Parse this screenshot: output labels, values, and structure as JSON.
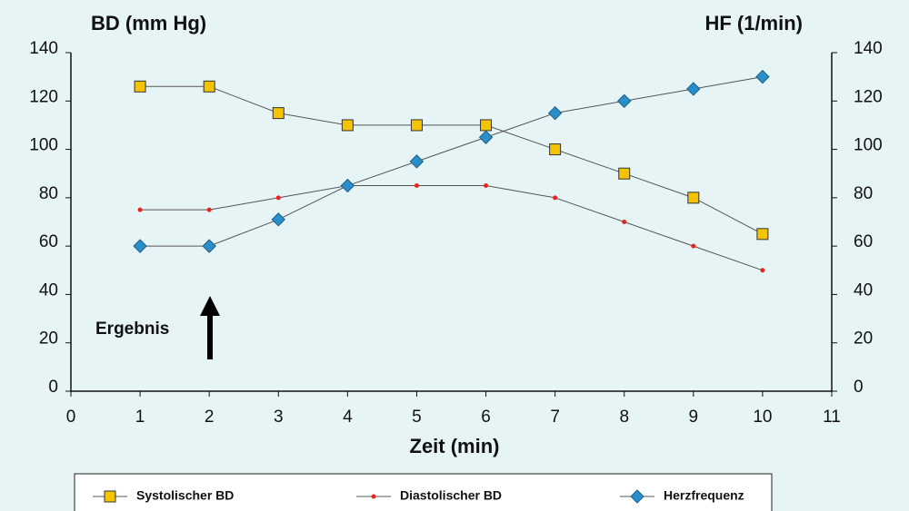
{
  "chart_data": {
    "type": "line",
    "y_title": "BD (mm Hg)",
    "y2_title": "HF (1/min)",
    "x_title": "Zeit (min)",
    "annotation": "Ergebnis",
    "x": [
      1,
      2,
      3,
      4,
      5,
      6,
      7,
      8,
      9,
      10
    ],
    "series": [
      {
        "name": "Systolischer BD",
        "color": "#f5c400",
        "marker": "square",
        "values": [
          126,
          126,
          115,
          110,
          110,
          110,
          100,
          90,
          80,
          65
        ]
      },
      {
        "name": "Diastolischer BD",
        "color": "#e8251d",
        "marker": "dot",
        "values": [
          75,
          75,
          80,
          85,
          85,
          85,
          80,
          70,
          60,
          50
        ]
      },
      {
        "name": "Herzfrequenz",
        "color": "#2a8fc9",
        "marker": "diamond",
        "axis": "y2",
        "values": [
          60,
          60,
          71,
          85,
          95,
          105,
          115,
          120,
          125,
          130
        ]
      }
    ],
    "xlim": [
      0,
      11
    ],
    "xticks": [
      0,
      1,
      2,
      3,
      4,
      5,
      6,
      7,
      8,
      9,
      10,
      11
    ],
    "ylim": [
      0,
      140
    ],
    "yticks": [
      0,
      20,
      40,
      60,
      80,
      100,
      120,
      140
    ],
    "y2lim": [
      0,
      140
    ],
    "y2ticks": [
      0,
      20,
      40,
      60,
      80,
      100,
      120,
      140
    ]
  }
}
